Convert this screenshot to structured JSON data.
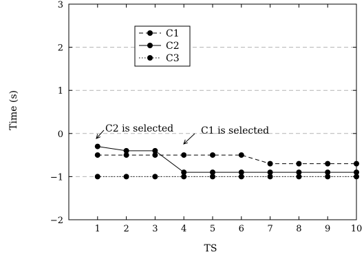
{
  "chart_data": {
    "type": "line",
    "xlabel": "TS",
    "ylabel": "Time (s)",
    "xlim": [
      0,
      10
    ],
    "ylim": [
      -2,
      3
    ],
    "x_ticks": [
      1,
      2,
      3,
      4,
      5,
      6,
      7,
      8,
      9,
      10
    ],
    "y_ticks": [
      -2,
      -1,
      0,
      1,
      2,
      3
    ],
    "grid": "horizontal dashed",
    "legend_position": "top-left",
    "x": [
      1,
      2,
      3,
      4,
      5,
      6,
      7,
      8,
      9,
      10
    ],
    "series": [
      {
        "name": "C1",
        "style": "dashed",
        "values": [
          -0.5,
          -0.5,
          -0.5,
          -0.5,
          -0.5,
          -0.5,
          -0.7,
          -0.7,
          -0.7,
          -0.7
        ]
      },
      {
        "name": "C2",
        "style": "solid",
        "values": [
          -0.3,
          -0.4,
          -0.4,
          -0.9,
          -0.9,
          -0.9,
          -0.9,
          -0.9,
          -0.9,
          -0.9
        ]
      },
      {
        "name": "C3",
        "style": "dotted",
        "values": [
          -1,
          -1,
          -1,
          -1,
          -1,
          -1,
          -1,
          -1,
          -1,
          -1
        ]
      }
    ],
    "annotations": [
      {
        "text": "C2 is selected",
        "x": 1,
        "y": -0.3
      },
      {
        "text": "C1 is selected",
        "x": 4,
        "y": -0.5
      }
    ]
  },
  "colors": {
    "line": "#000000",
    "grid": "#b3b3b3"
  }
}
